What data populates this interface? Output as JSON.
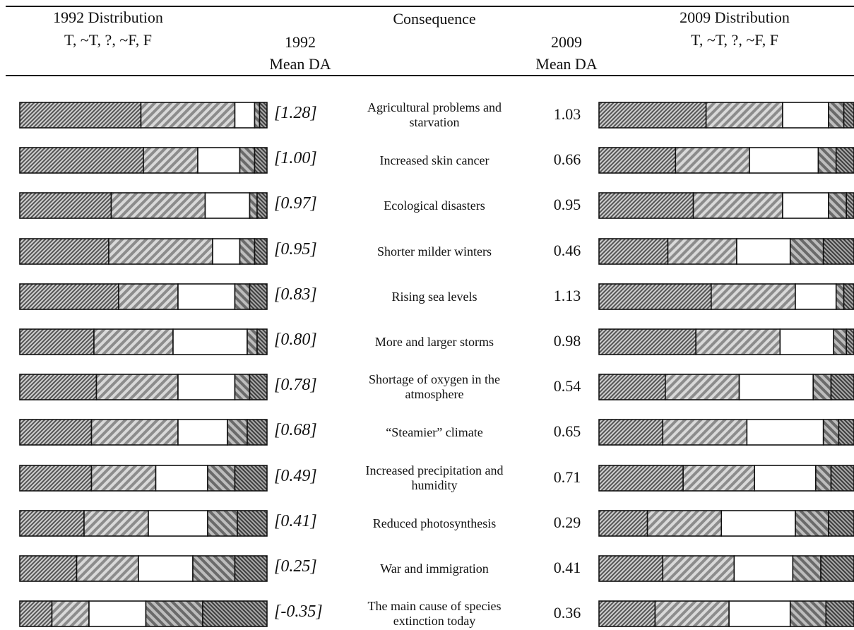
{
  "header": {
    "left_title": "1992 Distribution",
    "left_categories": "T, ~T, ?, ~F, F",
    "mean1992_year": "1992",
    "mean1992_label": "Mean DA",
    "consequence": "Consequence",
    "mean2009_year": "2009",
    "mean2009_label": "Mean DA",
    "right_title": "2009 Distribution",
    "right_categories": "T, ~T, ?, ~F, F"
  },
  "colors": {
    "T": "#8a8a8a",
    "~T": "#b4b4b4",
    "?": "#ffffff",
    "~F": "#9a9a9a",
    "F": "#6e6e6e",
    "border": "#111111"
  },
  "chart_data": {
    "type": "bar",
    "stacked": true,
    "orientation": "horizontal",
    "categories_legend": [
      "T",
      "~T",
      "?",
      "~F",
      "F"
    ],
    "rows": [
      {
        "consequence": "Agricultural problems and starvation",
        "mean1992": "[1.28]",
        "mean2009": "1.03",
        "dist1992": [
          49,
          38,
          8,
          2,
          3
        ],
        "dist2009": [
          42,
          30,
          18,
          6,
          4
        ]
      },
      {
        "consequence": "Increased skin cancer",
        "mean1992": "[1.00]",
        "mean2009": "0.66",
        "dist1992": [
          50,
          22,
          17,
          6,
          5
        ],
        "dist2009": [
          30,
          29,
          27,
          7,
          7
        ]
      },
      {
        "consequence": "Ecological disasters",
        "mean1992": "[0.97]",
        "mean2009": "0.95",
        "dist1992": [
          37,
          38,
          18,
          3,
          4
        ],
        "dist2009": [
          37,
          35,
          18,
          7,
          3
        ]
      },
      {
        "consequence": "Shorter milder winters",
        "mean1992": "[0.95]",
        "mean2009": "0.46",
        "dist1992": [
          36,
          42,
          11,
          6,
          5
        ],
        "dist2009": [
          27,
          27,
          21,
          13,
          12
        ]
      },
      {
        "consequence": "Rising sea levels",
        "mean1992": "[0.83]",
        "mean2009": "1.13",
        "dist1992": [
          40,
          24,
          23,
          6,
          7
        ],
        "dist2009": [
          44,
          33,
          16,
          3,
          4
        ]
      },
      {
        "consequence": "More and larger storms",
        "mean1992": "[0.80]",
        "mean2009": "0.98",
        "dist1992": [
          30,
          32,
          30,
          4,
          4
        ],
        "dist2009": [
          38,
          33,
          21,
          5,
          3
        ]
      },
      {
        "consequence": "Shortage of oxygen in the atmosphere",
        "mean1992": "[0.78]",
        "mean2009": "0.54",
        "dist1992": [
          31,
          33,
          23,
          6,
          7
        ],
        "dist2009": [
          26,
          29,
          29,
          7,
          9
        ]
      },
      {
        "consequence": "“Steamier” climate",
        "mean1992": "[0.68]",
        "mean2009": "0.65",
        "dist1992": [
          29,
          35,
          20,
          8,
          8
        ],
        "dist2009": [
          25,
          33,
          30,
          6,
          6
        ]
      },
      {
        "consequence": "Increased precipitation and humidity",
        "mean1992": "[0.49]",
        "mean2009": "0.71",
        "dist1992": [
          29,
          26,
          21,
          11,
          13
        ],
        "dist2009": [
          33,
          28,
          24,
          6,
          9
        ]
      },
      {
        "consequence": "Reduced photosynthesis",
        "mean1992": "[0.41]",
        "mean2009": "0.29",
        "dist1992": [
          26,
          26,
          24,
          12,
          12
        ],
        "dist2009": [
          19,
          29,
          29,
          13,
          10
        ]
      },
      {
        "consequence": "War and immigration",
        "mean1992": "[0.25]",
        "mean2009": "0.41",
        "dist1992": [
          23,
          25,
          22,
          17,
          13
        ],
        "dist2009": [
          25,
          28,
          23,
          11,
          13
        ]
      },
      {
        "consequence": "The main cause of species extinction today",
        "mean1992": "[-0.35]",
        "mean2009": "0.36",
        "dist1992": [
          13,
          15,
          23,
          23,
          26
        ],
        "dist2009": [
          22,
          29,
          24,
          14,
          11
        ]
      }
    ]
  }
}
